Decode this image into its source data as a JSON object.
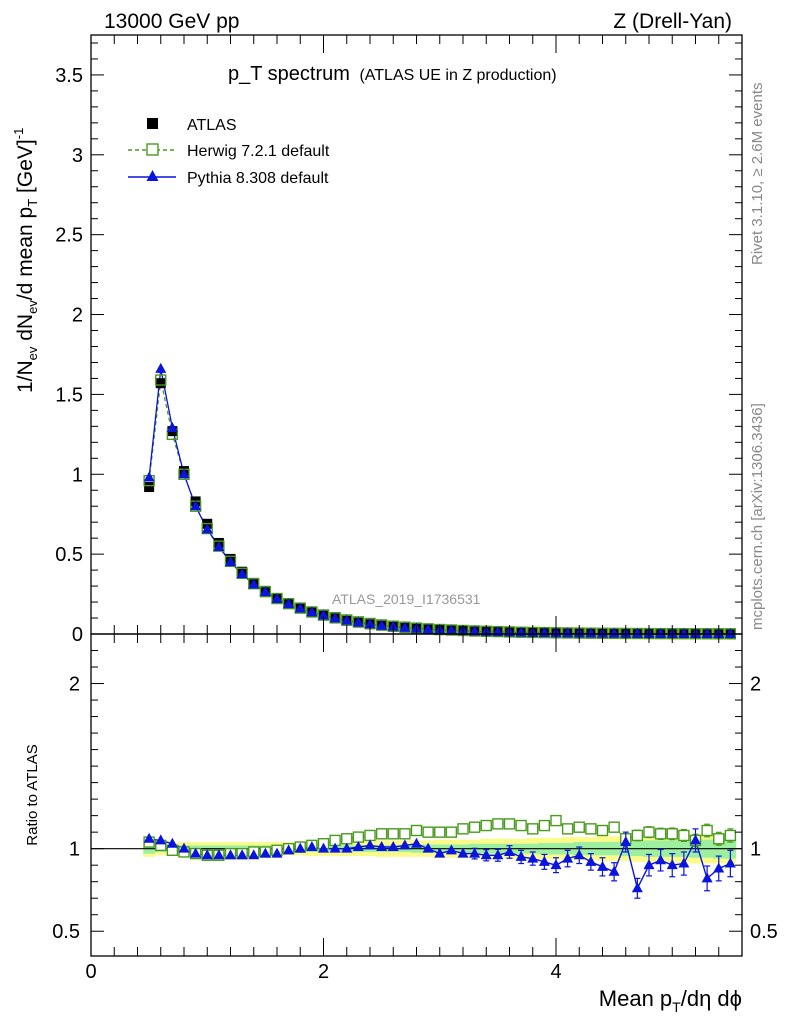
{
  "header": {
    "left": "13000 GeV pp",
    "right": "Z (Drell-Yan)"
  },
  "side_labels": {
    "rivet": "Rivet 3.1.10, ≥ 2.6M events",
    "mcplots": "mcplots.cern.ch [arXiv:1306.3436]"
  },
  "colors": {
    "data": "#000000",
    "herwig": "#4a9a1e",
    "pythia": "#0a14dc",
    "band_inner": "#9ef0a0",
    "band_outer": "#fbfb8c"
  },
  "chart_data": [
    {
      "type": "scatter",
      "panel": "main",
      "title": "p_T spectrum",
      "title_sub": "(ATLAS UE in Z production)",
      "ylabel": "1/N_ev dN_ev/d mean p_T [GeV]^-1",
      "analysis_id": "ATLAS_2019_I1736531",
      "xlim": [
        0,
        5.6
      ],
      "ylim": [
        0,
        3.75
      ],
      "yticks": [
        0,
        0.5,
        1,
        1.5,
        2,
        2.5,
        3,
        3.5
      ],
      "ytick_labels": [
        "0",
        "0.5",
        "1",
        "1.5",
        "2",
        "2.5",
        "3",
        "3.5"
      ],
      "legend_placement": "top-left",
      "x": [
        0.5,
        0.6,
        0.7,
        0.8,
        0.9,
        1.0,
        1.1,
        1.2,
        1.3,
        1.4,
        1.5,
        1.6,
        1.7,
        1.8,
        1.9,
        2.0,
        2.1,
        2.2,
        2.3,
        2.4,
        2.5,
        2.6,
        2.7,
        2.8,
        2.9,
        3.0,
        3.1,
        3.2,
        3.3,
        3.4,
        3.5,
        3.6,
        3.7,
        3.8,
        3.9,
        4.0,
        4.1,
        4.2,
        4.3,
        4.4,
        4.5,
        4.6,
        4.7,
        4.8,
        4.9,
        5.0,
        5.1,
        5.2,
        5.3,
        5.4,
        5.5
      ],
      "series": [
        {
          "name": "ATLAS",
          "values": [
            0.92,
            1.57,
            1.27,
            1.02,
            0.83,
            0.69,
            0.57,
            0.47,
            0.39,
            0.32,
            0.27,
            0.225,
            0.19,
            0.16,
            0.135,
            0.115,
            0.097,
            0.083,
            0.071,
            0.061,
            0.052,
            0.045,
            0.039,
            0.034,
            0.029,
            0.025,
            0.022,
            0.019,
            0.017,
            0.015,
            0.013,
            0.011,
            0.0095,
            0.0083,
            0.0072,
            0.0063,
            0.0055,
            0.0048,
            0.0042,
            0.0037,
            0.0033,
            0.0029,
            0.0026,
            0.0023,
            0.002,
            0.0018,
            0.0016,
            0.0014,
            0.0012,
            0.0011,
            0.001
          ]
        },
        {
          "name": "Herwig 7.2.1 default",
          "values": [
            0.96,
            1.59,
            1.25,
            1.0,
            0.8,
            0.66,
            0.55,
            0.455,
            0.38,
            0.315,
            0.265,
            0.222,
            0.19,
            0.162,
            0.138,
            0.119,
            0.102,
            0.088,
            0.076,
            0.066,
            0.057,
            0.049,
            0.043,
            0.037,
            0.032,
            0.028,
            0.025,
            0.022,
            0.019,
            0.017,
            0.015,
            0.013,
            0.011,
            0.0098,
            0.0086,
            0.0075,
            0.0066,
            0.0058,
            0.0051,
            0.0045,
            0.004,
            0.0035,
            0.0031,
            0.0027,
            0.0024,
            0.0021,
            0.0019,
            0.0017,
            0.0015,
            0.0013,
            0.0012
          ]
        },
        {
          "name": "Pythia 8.308 default",
          "values": [
            0.98,
            1.66,
            1.29,
            1.0,
            0.8,
            0.655,
            0.545,
            0.45,
            0.375,
            0.31,
            0.262,
            0.22,
            0.187,
            0.16,
            0.136,
            0.116,
            0.098,
            0.084,
            0.071,
            0.061,
            0.052,
            0.045,
            0.039,
            0.034,
            0.029,
            0.025,
            0.022,
            0.019,
            0.016,
            0.014,
            0.012,
            0.01,
            0.0087,
            0.0076,
            0.0066,
            0.0058,
            0.005,
            0.0044,
            0.0038,
            0.0033,
            0.0029,
            0.0025,
            0.0022,
            0.0019,
            0.0017,
            0.0015,
            0.0013,
            0.0012,
            0.001,
            0.0009,
            0.0008
          ]
        }
      ]
    },
    {
      "type": "scatter",
      "panel": "ratio",
      "ylabel": "Ratio to ATLAS",
      "xlabel": "Mean p_T/dη dφ",
      "xlim": [
        0,
        5.6
      ],
      "ylim": [
        0.35,
        2.3
      ],
      "xticks": [
        0,
        2,
        4
      ],
      "xtick_labels": [
        "0",
        "2",
        "4"
      ],
      "yticks": [
        0.5,
        1,
        2
      ],
      "ytick_labels": [
        "0.5",
        "1",
        "2"
      ],
      "x": [
        0.5,
        0.6,
        0.7,
        0.8,
        0.9,
        1.0,
        1.1,
        1.2,
        1.3,
        1.4,
        1.5,
        1.6,
        1.7,
        1.8,
        1.9,
        2.0,
        2.1,
        2.2,
        2.3,
        2.4,
        2.5,
        2.6,
        2.7,
        2.8,
        2.9,
        3.0,
        3.1,
        3.2,
        3.3,
        3.4,
        3.5,
        3.6,
        3.7,
        3.8,
        3.9,
        4.0,
        4.1,
        4.2,
        4.3,
        4.4,
        4.5,
        4.6,
        4.7,
        4.8,
        4.9,
        5.0,
        5.1,
        5.2,
        5.3,
        5.4,
        5.5
      ],
      "band_inner": [
        0.03,
        0.02,
        0.02,
        0.02,
        0.02,
        0.02,
        0.02,
        0.02,
        0.02,
        0.02,
        0.02,
        0.02,
        0.02,
        0.02,
        0.02,
        0.02,
        0.02,
        0.02,
        0.02,
        0.02,
        0.02,
        0.02,
        0.02,
        0.025,
        0.025,
        0.025,
        0.025,
        0.025,
        0.03,
        0.03,
        0.03,
        0.03,
        0.03,
        0.03,
        0.035,
        0.035,
        0.035,
        0.04,
        0.04,
        0.04,
        0.04,
        0.045,
        0.045,
        0.05,
        0.05,
        0.05,
        0.05,
        0.055,
        0.055,
        0.06,
        0.06
      ],
      "band_outer": [
        0.05,
        0.04,
        0.04,
        0.04,
        0.04,
        0.04,
        0.04,
        0.04,
        0.04,
        0.04,
        0.04,
        0.04,
        0.04,
        0.04,
        0.045,
        0.045,
        0.045,
        0.045,
        0.045,
        0.045,
        0.05,
        0.05,
        0.05,
        0.05,
        0.05,
        0.055,
        0.055,
        0.055,
        0.055,
        0.06,
        0.06,
        0.06,
        0.06,
        0.065,
        0.065,
        0.065,
        0.07,
        0.07,
        0.07,
        0.075,
        0.075,
        0.075,
        0.08,
        0.08,
        0.08,
        0.085,
        0.085,
        0.09,
        0.09,
        0.09,
        0.09
      ],
      "series": [
        {
          "name": "Herwig 7.2.1 default",
          "values": [
            1.04,
            1.02,
            0.99,
            0.98,
            0.97,
            0.96,
            0.96,
            0.97,
            0.97,
            0.98,
            0.98,
            0.99,
            1.0,
            1.01,
            1.02,
            1.03,
            1.05,
            1.06,
            1.07,
            1.08,
            1.09,
            1.09,
            1.09,
            1.11,
            1.1,
            1.1,
            1.1,
            1.12,
            1.13,
            1.14,
            1.15,
            1.15,
            1.14,
            1.12,
            1.14,
            1.17,
            1.12,
            1.13,
            1.12,
            1.11,
            1.13,
            1.06,
            1.08,
            1.1,
            1.09,
            1.09,
            1.08,
            1.05,
            1.11,
            1.06,
            1.08
          ],
          "errors": [
            0.005,
            0.005,
            0.005,
            0.005,
            0.005,
            0.005,
            0.005,
            0.005,
            0.005,
            0.005,
            0.006,
            0.006,
            0.006,
            0.007,
            0.007,
            0.008,
            0.008,
            0.009,
            0.01,
            0.01,
            0.011,
            0.012,
            0.012,
            0.013,
            0.014,
            0.015,
            0.016,
            0.017,
            0.018,
            0.019,
            0.02,
            0.021,
            0.022,
            0.023,
            0.024,
            0.025,
            0.026,
            0.027,
            0.028,
            0.029,
            0.03,
            0.031,
            0.032,
            0.033,
            0.034,
            0.035,
            0.036,
            0.037,
            0.038,
            0.039,
            0.04
          ]
        },
        {
          "name": "Pythia 8.308 default",
          "values": [
            1.06,
            1.05,
            1.03,
            1.0,
            0.97,
            0.96,
            0.96,
            0.96,
            0.96,
            0.96,
            0.97,
            0.97,
            0.99,
            1.0,
            1.01,
            1.0,
            1.0,
            1.0,
            1.01,
            1.02,
            1.01,
            1.01,
            1.02,
            1.03,
            1.0,
            0.97,
            0.99,
            0.97,
            0.97,
            0.96,
            0.96,
            0.98,
            0.95,
            0.94,
            0.92,
            0.9,
            0.94,
            0.96,
            0.92,
            0.89,
            0.86,
            1.04,
            0.76,
            0.9,
            0.93,
            0.9,
            0.91,
            1.05,
            0.82,
            0.88,
            0.91
          ],
          "errors": [
            0.01,
            0.01,
            0.01,
            0.01,
            0.01,
            0.01,
            0.01,
            0.01,
            0.01,
            0.01,
            0.012,
            0.012,
            0.012,
            0.013,
            0.013,
            0.014,
            0.015,
            0.016,
            0.017,
            0.018,
            0.02,
            0.02,
            0.02,
            0.022,
            0.024,
            0.026,
            0.028,
            0.03,
            0.032,
            0.034,
            0.036,
            0.038,
            0.04,
            0.04,
            0.045,
            0.045,
            0.05,
            0.05,
            0.05,
            0.055,
            0.055,
            0.06,
            0.06,
            0.065,
            0.065,
            0.07,
            0.07,
            0.07,
            0.075,
            0.075,
            0.08
          ]
        }
      ]
    }
  ]
}
